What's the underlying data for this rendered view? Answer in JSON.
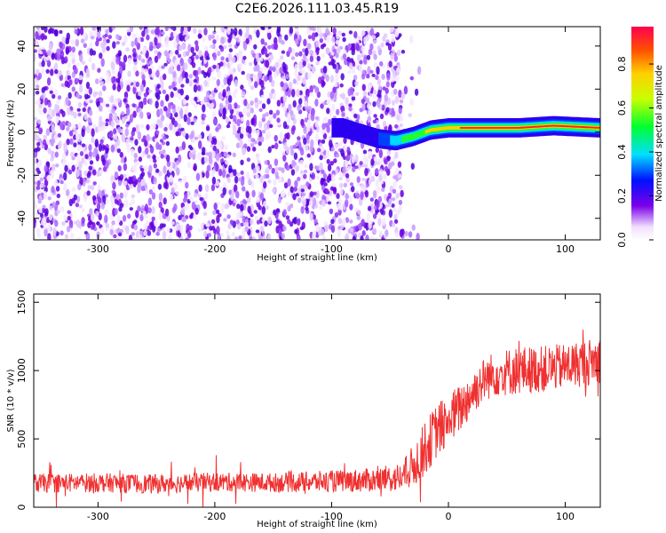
{
  "chart_data": [
    {
      "type": "heatmap",
      "title": "C2E6.2026.111.03.45.R19",
      "xlabel": "Height of straight line (km)",
      "ylabel": "Frequency (Hz)",
      "xlim": [
        -355,
        130
      ],
      "ylim": [
        -50,
        49
      ],
      "xticks": [
        -300,
        -200,
        -100,
        0,
        100
      ],
      "yticks": [
        -40,
        -20,
        0,
        20,
        40
      ],
      "colorbar": {
        "label": "Normalized spectral amplitude",
        "range": [
          0,
          0.97
        ],
        "ticks": [
          0.0,
          0.2,
          0.4,
          0.6,
          0.8
        ]
      },
      "features": {
        "noise_region_x": [
          -355,
          -40
        ],
        "signal_track": [
          {
            "x": -90,
            "freq": 2
          },
          {
            "x": -60,
            "freq": -3
          },
          {
            "x": -45,
            "freq": -4
          },
          {
            "x": -30,
            "freq": -2
          },
          {
            "x": -15,
            "freq": 1
          },
          {
            "x": 0,
            "freq": 2
          },
          {
            "x": 60,
            "freq": 2
          },
          {
            "x": 90,
            "freq": 3
          },
          {
            "x": 130,
            "freq": 2
          }
        ]
      }
    },
    {
      "type": "line",
      "title": "",
      "xlabel": "Height of straight line (km)",
      "ylabel": "SNR (10 * v/v)",
      "xlim": [
        -355,
        130
      ],
      "ylim": [
        0,
        1560
      ],
      "xticks": [
        -300,
        -200,
        -100,
        0,
        100
      ],
      "yticks": [
        0,
        500,
        1000,
        1500
      ],
      "color": "#f03030",
      "series": [
        {
          "name": "SNR",
          "x": [
            -355,
            -300,
            -250,
            -200,
            -150,
            -100,
            -60,
            -40,
            -30,
            -20,
            -10,
            0,
            10,
            20,
            30,
            40,
            60,
            80,
            100,
            130
          ],
          "mean": [
            175,
            180,
            170,
            185,
            180,
            190,
            200,
            220,
            300,
            430,
            560,
            640,
            720,
            830,
            930,
            980,
            1000,
            1010,
            1030,
            1080
          ],
          "spread": [
            70,
            70,
            70,
            70,
            70,
            80,
            90,
            110,
            160,
            200,
            200,
            200,
            180,
            170,
            160,
            170,
            180,
            170,
            170,
            170
          ]
        }
      ]
    }
  ]
}
